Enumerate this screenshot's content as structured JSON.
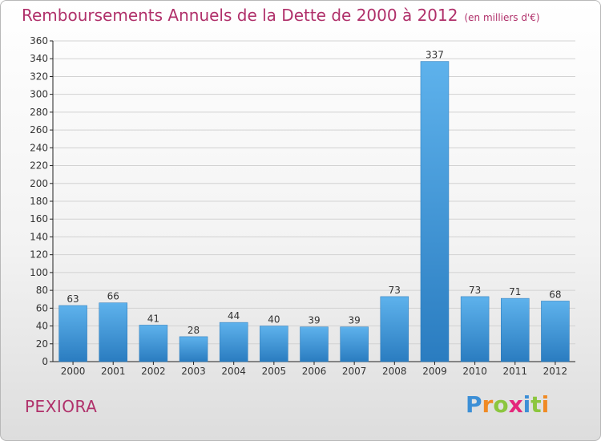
{
  "header": {
    "title": "Remboursements Annuels de la Dette de 2000 à 2012",
    "subtitle": "(en milliers d'€)"
  },
  "footer": {
    "commune": "PEXIORA",
    "logo": {
      "text": "Proxiti",
      "letters": [
        "P",
        "r",
        "o",
        "x",
        "i",
        "t",
        "i"
      ],
      "colors": [
        "#3c8fd6",
        "#f08a24",
        "#8cc63f",
        "#e4277b",
        "#3c8fd6",
        "#8cc63f",
        "#f08a24"
      ]
    }
  },
  "chart_data": {
    "type": "bar",
    "categories": [
      "2000",
      "2001",
      "2002",
      "2003",
      "2004",
      "2005",
      "2006",
      "2007",
      "2008",
      "2009",
      "2010",
      "2011",
      "2012"
    ],
    "values": [
      63,
      66,
      41,
      28,
      44,
      40,
      39,
      39,
      73,
      337,
      73,
      71,
      68
    ],
    "data_labels": [
      "63",
      "66",
      "41",
      "28",
      "44",
      "40",
      "39",
      "39",
      "73",
      "337",
      "73",
      "71",
      "68"
    ],
    "ylim": [
      0,
      360
    ],
    "ytick_step": 20,
    "grid": true,
    "legend": "none",
    "colors": {
      "bar_light": "#5eb2ec",
      "bar_dark": "#2a7cc0",
      "grid": "#d2d2d2",
      "axis": "#222222",
      "text": "#333333"
    }
  }
}
